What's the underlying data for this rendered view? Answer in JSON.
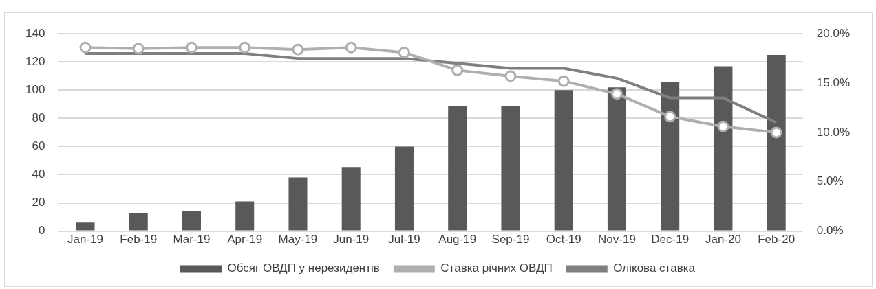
{
  "chart_data": {
    "type": "bar",
    "categories": [
      "Jan-19",
      "Feb-19",
      "Mar-19",
      "Apr-19",
      "May-19",
      "Jun-19",
      "Jul-19",
      "Aug-19",
      "Sep-19",
      "Oct-19",
      "Nov-19",
      "Dec-19",
      "Jan-20",
      "Feb-20"
    ],
    "series": [
      {
        "name": "Обсяг ОВДП у нерезидентів",
        "color": "#595959",
        "values": [
          6,
          12.5,
          14,
          21,
          38,
          45,
          60,
          89,
          89,
          100,
          102,
          106,
          117,
          125
        ]
      },
      {
        "name": "Ставка річних ОВДП",
        "type": "line",
        "axis": "y2",
        "marker": "circle",
        "color": "#afafaf",
        "values": [
          18.6,
          18.5,
          18.6,
          18.6,
          18.4,
          18.6,
          18.1,
          16.3,
          15.7,
          15.2,
          13.9,
          11.6,
          10.6,
          10.0
        ]
      },
      {
        "name": "Олікова ставка",
        "type": "line",
        "axis": "y2",
        "marker": "none",
        "color": "#7f7f7f",
        "values": [
          18,
          18,
          18,
          18,
          17.5,
          17.5,
          17.5,
          17,
          16.5,
          16.5,
          15.5,
          13.5,
          13.5,
          11
        ]
      }
    ],
    "ylim": [
      0,
      140
    ],
    "yticks": [
      0,
      20,
      40,
      60,
      80,
      100,
      120,
      140
    ],
    "y2lim": [
      0,
      20
    ],
    "y2ticks": [
      {
        "value": 0,
        "label": "0.0%"
      },
      {
        "value": 5,
        "label": "5.0%"
      },
      {
        "value": 10,
        "label": "10.0%"
      },
      {
        "value": 15,
        "label": "15.0%"
      },
      {
        "value": 20,
        "label": "20.0%"
      }
    ],
    "grid": "y",
    "legend": "bottom"
  }
}
